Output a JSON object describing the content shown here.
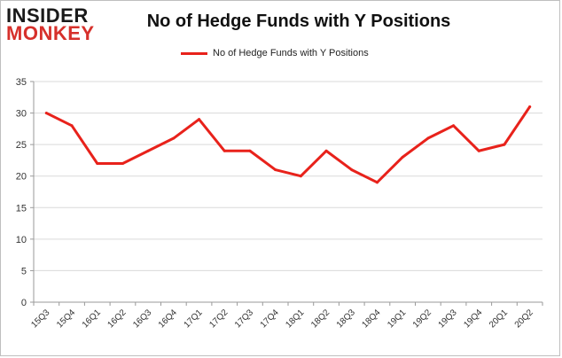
{
  "logo": {
    "line1": "INSIDER",
    "line2": "MONKEY"
  },
  "colors": {
    "line": "#e8221b",
    "grid": "#d9d9d9",
    "axis": "#9a9a9a",
    "logo_red": "#d6302b"
  },
  "chart_data": {
    "type": "line",
    "title": "No of Hedge Funds with Y Positions",
    "xlabel": "",
    "ylabel": "",
    "ylim": [
      0,
      35
    ],
    "yticks": [
      0,
      5,
      10,
      15,
      20,
      25,
      30,
      35
    ],
    "grid": true,
    "legend_placement": "top-center",
    "categories": [
      "15Q3",
      "15Q4",
      "16Q1",
      "16Q2",
      "16Q3",
      "16Q4",
      "17Q1",
      "17Q2",
      "17Q3",
      "17Q4",
      "18Q1",
      "18Q2",
      "18Q3",
      "18Q4",
      "19Q1",
      "19Q2",
      "19Q3",
      "19Q4",
      "20Q1",
      "20Q2"
    ],
    "series": [
      {
        "name": "No of Hedge Funds with Y Positions",
        "values": [
          30,
          28,
          22,
          22,
          24,
          26,
          29,
          24,
          24,
          21,
          20,
          24,
          21,
          19,
          23,
          26,
          28,
          24,
          25,
          31
        ]
      }
    ]
  }
}
